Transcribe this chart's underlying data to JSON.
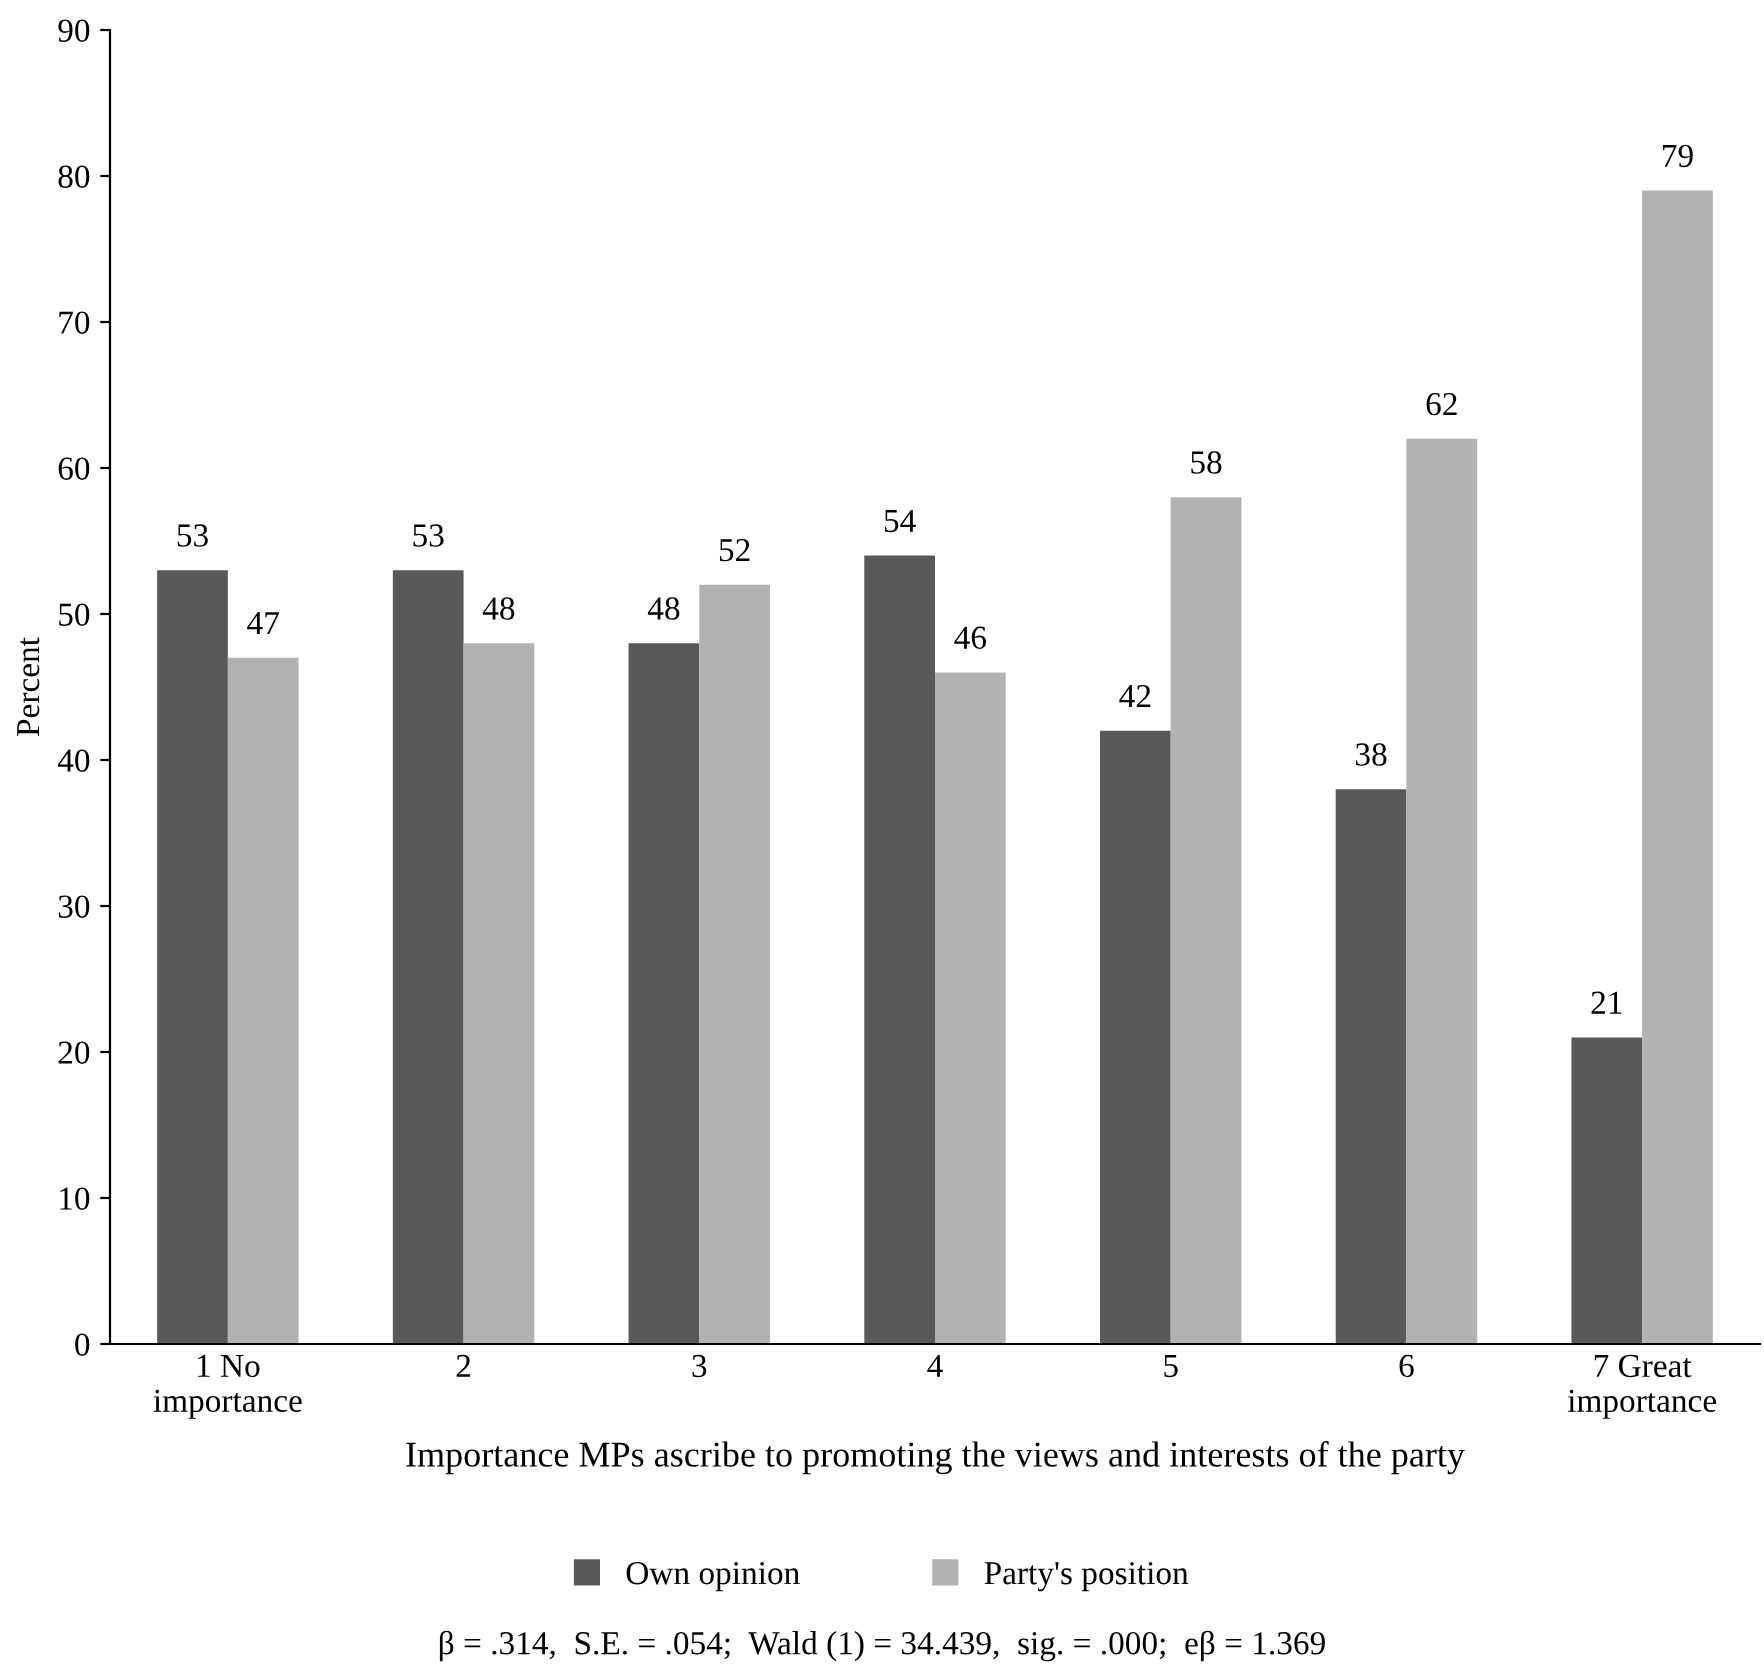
{
  "chart_data": {
    "type": "bar",
    "xlabel": "Importance MPs ascribe to promoting the views and interests of the party",
    "ylabel": "Percent",
    "categories": [
      "1 No\nimportance",
      "2",
      "3",
      "4",
      "5",
      "6",
      "7 Great\nimportance"
    ],
    "series": [
      {
        "name": "Own opinion",
        "color": "#595959",
        "values": [
          53,
          53,
          48,
          54,
          42,
          38,
          21
        ]
      },
      {
        "name": "Party's position",
        "color": "#b2b2b2",
        "values": [
          47,
          48,
          52,
          46,
          58,
          62,
          79
        ]
      }
    ],
    "ylim": [
      0,
      90
    ],
    "yticks": [
      0,
      10,
      20,
      30,
      40,
      50,
      60,
      70,
      80,
      90
    ],
    "grid": false,
    "legend": "bottom",
    "data_labels": true,
    "annotations": [
      "β = .314,  S.E. = .054;  Wald (1) = 34.439,  sig. = .000;  eβ = 1.369"
    ]
  }
}
